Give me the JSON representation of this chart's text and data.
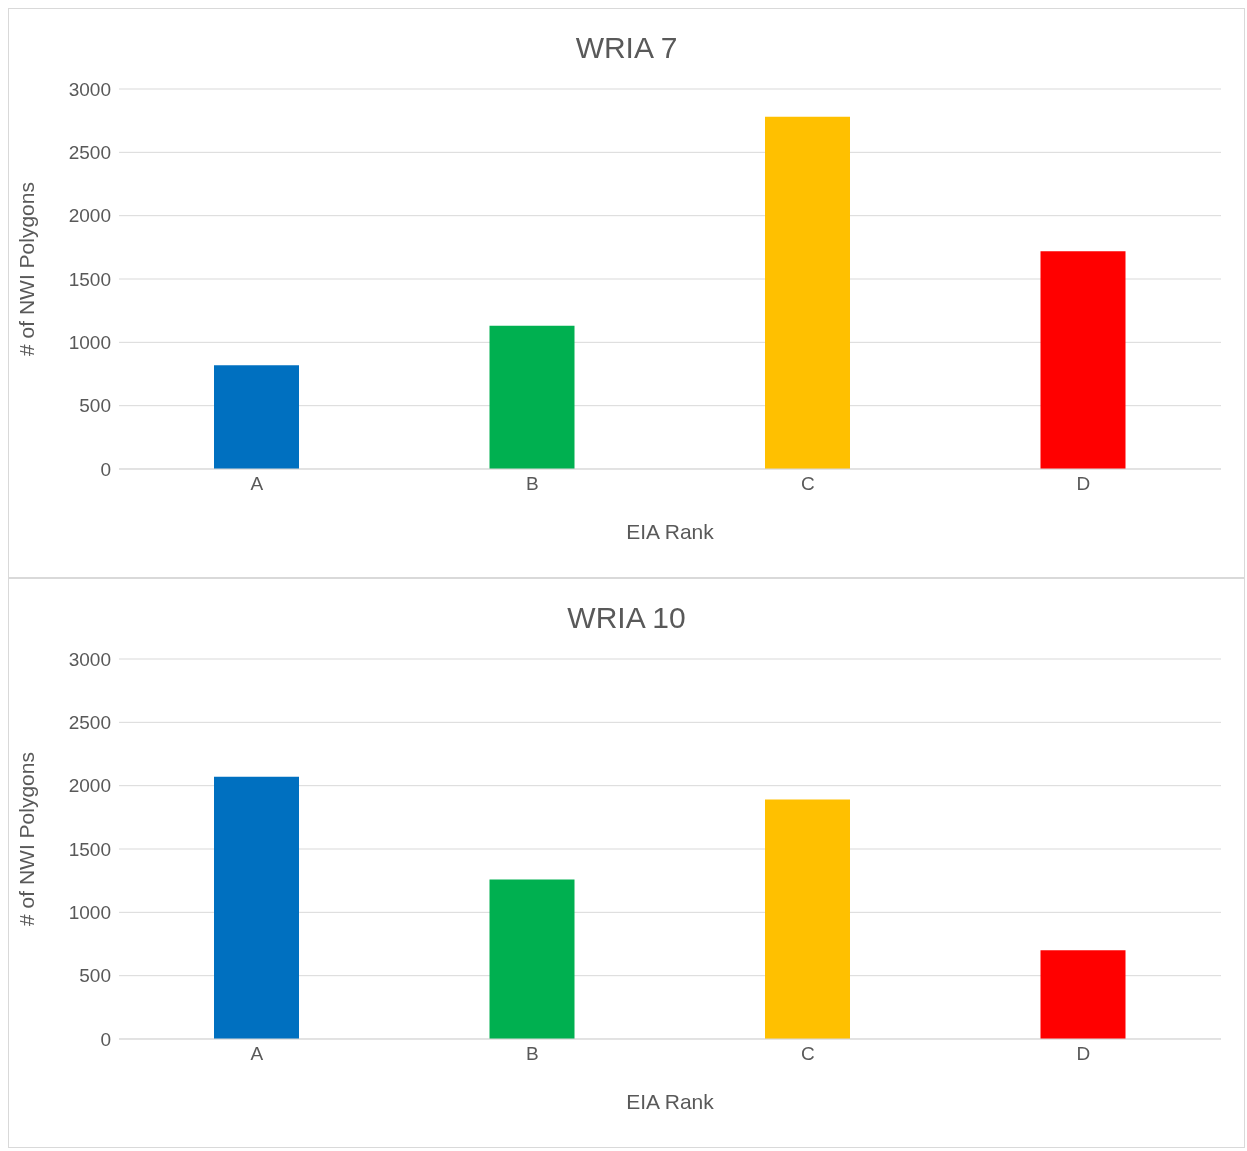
{
  "chart_data": [
    {
      "type": "bar",
      "title": "WRIA 7",
      "xlabel": "EIA Rank",
      "ylabel": "# of NWI Polygons",
      "categories": [
        "A",
        "B",
        "C",
        "D"
      ],
      "values": [
        820,
        1130,
        2780,
        1720
      ],
      "colors": [
        "#0070c0",
        "#00b050",
        "#ffc000",
        "#ff0000"
      ],
      "ylim": [
        0,
        3000
      ],
      "yticks": [
        0,
        500,
        1000,
        1500,
        2000,
        2500,
        3000
      ],
      "grid": "y",
      "legend": false
    },
    {
      "type": "bar",
      "title": "WRIA 10",
      "xlabel": "EIA Rank",
      "ylabel": "# of NWI Polygons",
      "categories": [
        "A",
        "B",
        "C",
        "D"
      ],
      "values": [
        2070,
        1260,
        1890,
        700
      ],
      "colors": [
        "#0070c0",
        "#00b050",
        "#ffc000",
        "#ff0000"
      ],
      "ylim": [
        0,
        3000
      ],
      "yticks": [
        0,
        500,
        1000,
        1500,
        2000,
        2500,
        3000
      ],
      "grid": "y",
      "legend": false
    }
  ]
}
